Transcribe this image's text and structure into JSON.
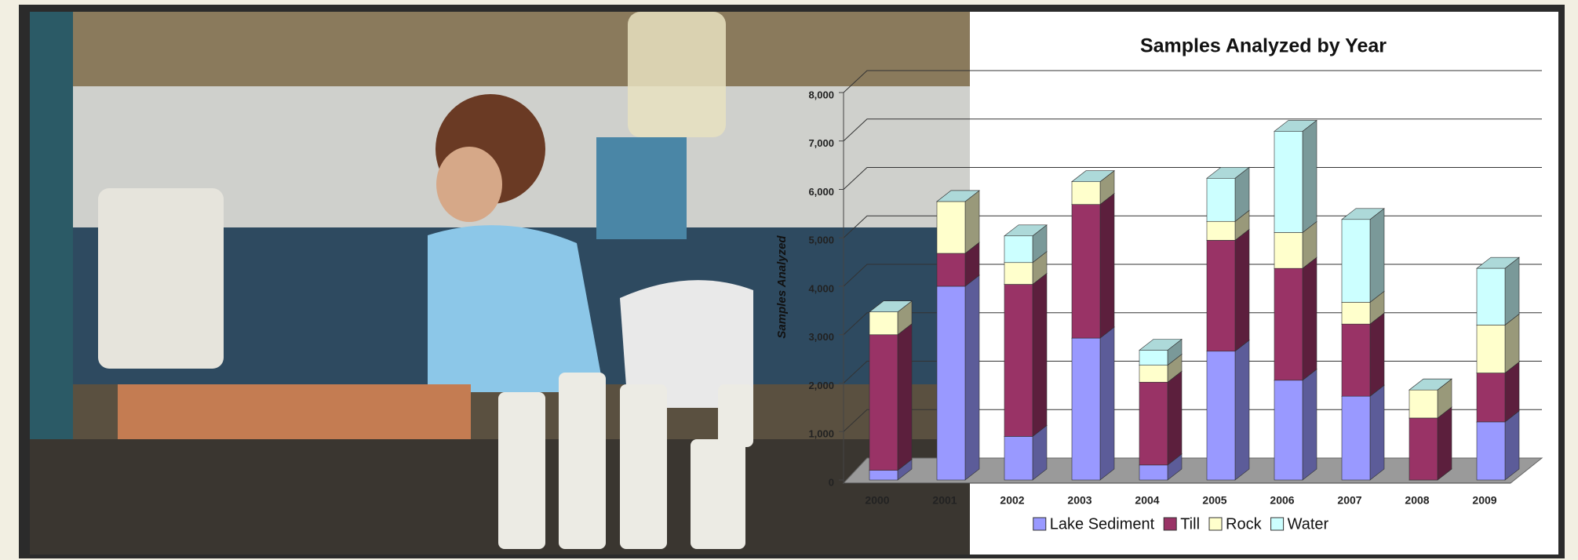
{
  "chart_data": {
    "type": "bar",
    "stacked": true,
    "title": "Samples Analyzed by Year",
    "y_label": "Samples Analyzed",
    "categories": [
      "2000",
      "2001",
      "2002",
      "2003",
      "2004",
      "2005",
      "2006",
      "2007",
      "2008",
      "2009"
    ],
    "series": [
      {
        "name": "Lake Sediment",
        "color": "#9999ff",
        "values": [
          200,
          4000,
          900,
          2930,
          310,
          2660,
          2060,
          1730,
          0,
          1200
        ]
      },
      {
        "name": "Till",
        "color": "#993366",
        "values": [
          2800,
          680,
          3140,
          2760,
          1710,
          2290,
          2310,
          1490,
          1280,
          1010
        ]
      },
      {
        "name": "Rock",
        "color": "#ffffcc",
        "values": [
          470,
          1070,
          450,
          470,
          350,
          390,
          740,
          450,
          580,
          990
        ]
      },
      {
        "name": "Water",
        "color": "#ccffff",
        "values": [
          0,
          0,
          550,
          0,
          310,
          890,
          2090,
          1710,
          0,
          1170
        ]
      }
    ],
    "ylim": [
      0,
      8000
    ],
    "yticks": [
      0,
      {
        "value": 1000,
        "label": "1,000"
      },
      {
        "value": 2000,
        "label": "2,000"
      },
      {
        "value": 3000,
        "label": "3,000"
      },
      {
        "value": 4000,
        "label": "4,000"
      },
      {
        "value": 5000,
        "label": "5,000"
      },
      {
        "value": 6000,
        "label": "6,000"
      },
      {
        "value": 7000,
        "label": "7,000"
      },
      {
        "value": 8000,
        "label": "8,000"
      }
    ],
    "grid": true,
    "legend": "bottom"
  }
}
